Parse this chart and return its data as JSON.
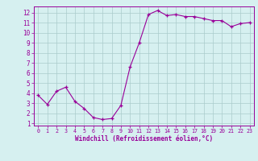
{
  "x": [
    0,
    1,
    2,
    3,
    4,
    5,
    6,
    7,
    8,
    9,
    10,
    11,
    12,
    13,
    14,
    15,
    16,
    17,
    18,
    19,
    20,
    21,
    22,
    23
  ],
  "y": [
    3.8,
    2.9,
    4.2,
    4.6,
    3.2,
    2.5,
    1.6,
    1.4,
    1.5,
    2.8,
    6.6,
    9.0,
    11.8,
    12.2,
    11.7,
    11.8,
    11.6,
    11.6,
    11.4,
    11.2,
    11.2,
    10.6,
    10.9,
    11.0
  ],
  "line_color": "#990099",
  "marker": "+",
  "marker_size": 3,
  "bg_color": "#d6f0f0",
  "grid_color": "#aacccc",
  "xlabel": "Windchill (Refroidissement éolien,°C)",
  "xlim": [
    -0.5,
    23.5
  ],
  "ylim": [
    0.8,
    12.6
  ],
  "yticks": [
    1,
    2,
    3,
    4,
    5,
    6,
    7,
    8,
    9,
    10,
    11,
    12
  ],
  "xticks": [
    0,
    1,
    2,
    3,
    4,
    5,
    6,
    7,
    8,
    9,
    10,
    11,
    12,
    13,
    14,
    15,
    16,
    17,
    18,
    19,
    20,
    21,
    22,
    23
  ],
  "tick_color": "#990099",
  "label_color": "#990099",
  "spine_color": "#990099"
}
